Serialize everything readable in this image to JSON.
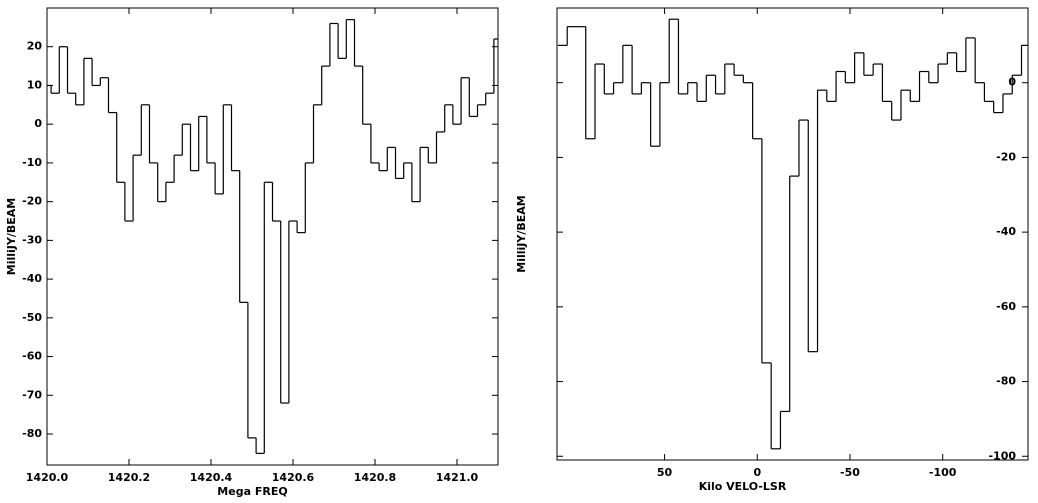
{
  "chart_data": [
    {
      "type": "line",
      "step": true,
      "color": "#000000",
      "y_label": "MilliJY/BEAM",
      "x_label": "Mega FREQ",
      "xlim": [
        1420.0,
        1421.1
      ],
      "ylim": [
        -88,
        30
      ],
      "xticks": [
        {
          "value": 1420,
          "label": "1420.0"
        },
        1420.2,
        1420.4,
        1420.6,
        1420.8,
        {
          "value": 1421,
          "label": "1421.0"
        }
      ],
      "yticks": [
        20,
        10,
        0,
        -10,
        -20,
        -30,
        -40,
        -50,
        -60,
        -70,
        -80
      ],
      "x": [
        1420.0,
        1420.02,
        1420.04,
        1420.06,
        1420.08,
        1420.1,
        1420.12,
        1420.14,
        1420.16,
        1420.18,
        1420.2,
        1420.22,
        1420.24,
        1420.26,
        1420.28,
        1420.3,
        1420.32,
        1420.34,
        1420.36,
        1420.38,
        1420.4,
        1420.42,
        1420.44,
        1420.46,
        1420.48,
        1420.5,
        1420.52,
        1420.54,
        1420.56,
        1420.58,
        1420.6,
        1420.62,
        1420.64,
        1420.66,
        1420.68,
        1420.7,
        1420.72,
        1420.74,
        1420.76,
        1420.78,
        1420.8,
        1420.82,
        1420.84,
        1420.86,
        1420.88,
        1420.9,
        1420.92,
        1420.94,
        1420.96,
        1420.98,
        1421.0,
        1421.02,
        1421.04,
        1421.06,
        1421.08,
        1421.1
      ],
      "values": [
        10,
        8,
        20,
        8,
        5,
        17,
        10,
        12,
        3,
        -15,
        -25,
        -8,
        5,
        -10,
        -20,
        -15,
        -8,
        0,
        -12,
        2,
        -10,
        -18,
        5,
        -12,
        -46,
        -81,
        -85,
        -15,
        -25,
        -72,
        -25,
        -28,
        -10,
        5,
        15,
        26,
        17,
        27,
        15,
        0,
        -10,
        -12,
        -6,
        -14,
        -10,
        -20,
        -6,
        -10,
        -2,
        5,
        0,
        12,
        2,
        5,
        8,
        22
      ]
    },
    {
      "type": "line",
      "step": true,
      "color": "#000000",
      "y_label": "MilliJY/BEAM",
      "x_label": "Kilo VELO-LSR",
      "xlim": [
        108,
        -146
      ],
      "ylim": [
        -101,
        20
      ],
      "xticks": [
        50,
        0,
        -50,
        -100
      ],
      "yticks": [
        0,
        -20,
        -40,
        -60,
        -80,
        -100
      ],
      "x": [
        105,
        100,
        95,
        90,
        85,
        80,
        75,
        70,
        65,
        60,
        55,
        50,
        45,
        40,
        35,
        30,
        25,
        20,
        15,
        10,
        5,
        0,
        -5,
        -10,
        -15,
        -20,
        -25,
        -30,
        -35,
        -40,
        -45,
        -50,
        -55,
        -60,
        -65,
        -70,
        -75,
        -80,
        -85,
        -90,
        -95,
        -100,
        -105,
        -110,
        -115,
        -120,
        -125,
        -130,
        -135,
        -140,
        -145
      ],
      "values": [
        10,
        15,
        15,
        -15,
        5,
        -3,
        0,
        10,
        -3,
        0,
        -17,
        0,
        17,
        -3,
        0,
        -5,
        2,
        -3,
        5,
        2,
        0,
        -15,
        -75,
        -98,
        -88,
        -25,
        -10,
        -72,
        -2,
        -5,
        3,
        0,
        8,
        2,
        5,
        -5,
        -10,
        -2,
        -5,
        3,
        0,
        5,
        8,
        3,
        12,
        0,
        -5,
        -8,
        -3,
        2,
        10
      ]
    }
  ]
}
